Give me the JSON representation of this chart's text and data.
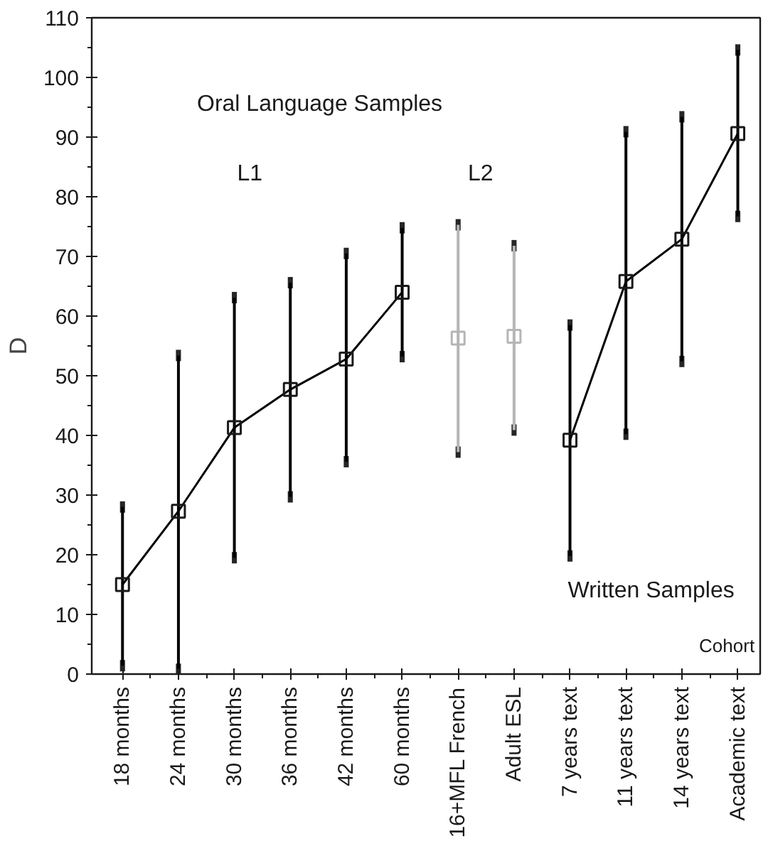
{
  "chart_data": {
    "type": "line",
    "ylabel": "D",
    "xlabel": "Cohort",
    "categories": [
      "18 months",
      "24 months",
      "30 months",
      "36 months",
      "42 months",
      "60 months",
      "16+MFL French",
      "Adult ESL",
      "7 years text",
      "11 years text",
      "14 years text",
      "Academic text"
    ],
    "series": [
      {
        "color": "#000000",
        "values": [
          15,
          27.3,
          41.3,
          47.7,
          52.8,
          64.0,
          null,
          null,
          null,
          null,
          null,
          null
        ],
        "errors": [
          [
            1.4,
            28
          ],
          [
            0.8,
            53.4
          ],
          [
            19.5,
            63.1
          ],
          [
            29.7,
            65.6
          ],
          [
            35.6,
            70.5
          ],
          [
            53.2,
            74.8
          ],
          null,
          null,
          null,
          null,
          null,
          null
        ]
      },
      {
        "type": "scatter",
        "color": "#b5b5b5",
        "values": [
          null,
          null,
          null,
          null,
          null,
          null,
          56.3,
          56.6,
          null,
          null,
          null,
          null
        ],
        "errors": [
          null,
          null,
          null,
          null,
          null,
          null,
          [
            37.2,
            75.3
          ],
          [
            40.9,
            71.8
          ],
          null,
          null,
          null,
          null
        ]
      },
      {
        "color": "#000000",
        "values": [
          null,
          null,
          null,
          null,
          null,
          null,
          null,
          null,
          39.2,
          65.8,
          72.9,
          90.6
        ],
        "errors": [
          null,
          null,
          null,
          null,
          null,
          null,
          null,
          null,
          [
            19.8,
            58.5
          ],
          [
            40.2,
            90.9
          ],
          [
            52.4,
            93.4
          ],
          [
            76.7,
            104.6
          ]
        ]
      }
    ],
    "ylim": [
      0,
      110
    ],
    "yticks": [
      0,
      10,
      20,
      30,
      40,
      50,
      60,
      70,
      80,
      90,
      100,
      110
    ],
    "annotations": [
      "Oral Language Samples",
      "L1",
      "L2",
      "Written Samples"
    ],
    "marker": "square",
    "grid": false
  }
}
